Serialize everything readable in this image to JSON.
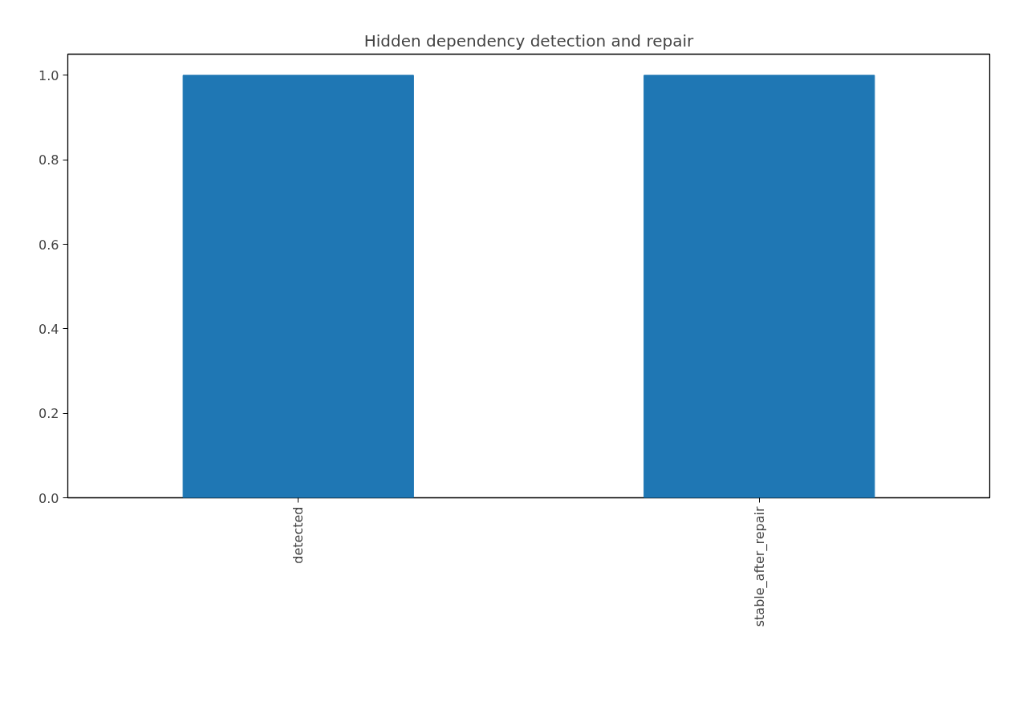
{
  "chart_data": {
    "type": "bar",
    "title": "Hidden dependency detection and repair",
    "categories": [
      "detected",
      "stable_after_repair"
    ],
    "values": [
      1.0,
      1.0
    ],
    "color": "#1f77b4",
    "ylim": [
      0,
      1.05
    ],
    "yticks": [
      {
        "value": 0,
        "label": "0.0"
      },
      {
        "value": 0.2,
        "label": "0.2"
      },
      {
        "value": 0.4,
        "label": "0.4"
      },
      {
        "value": 0.6,
        "label": "0.6"
      },
      {
        "value": 0.8,
        "label": "0.8"
      },
      {
        "value": 1.0,
        "label": "1.0"
      }
    ],
    "grid": false
  }
}
